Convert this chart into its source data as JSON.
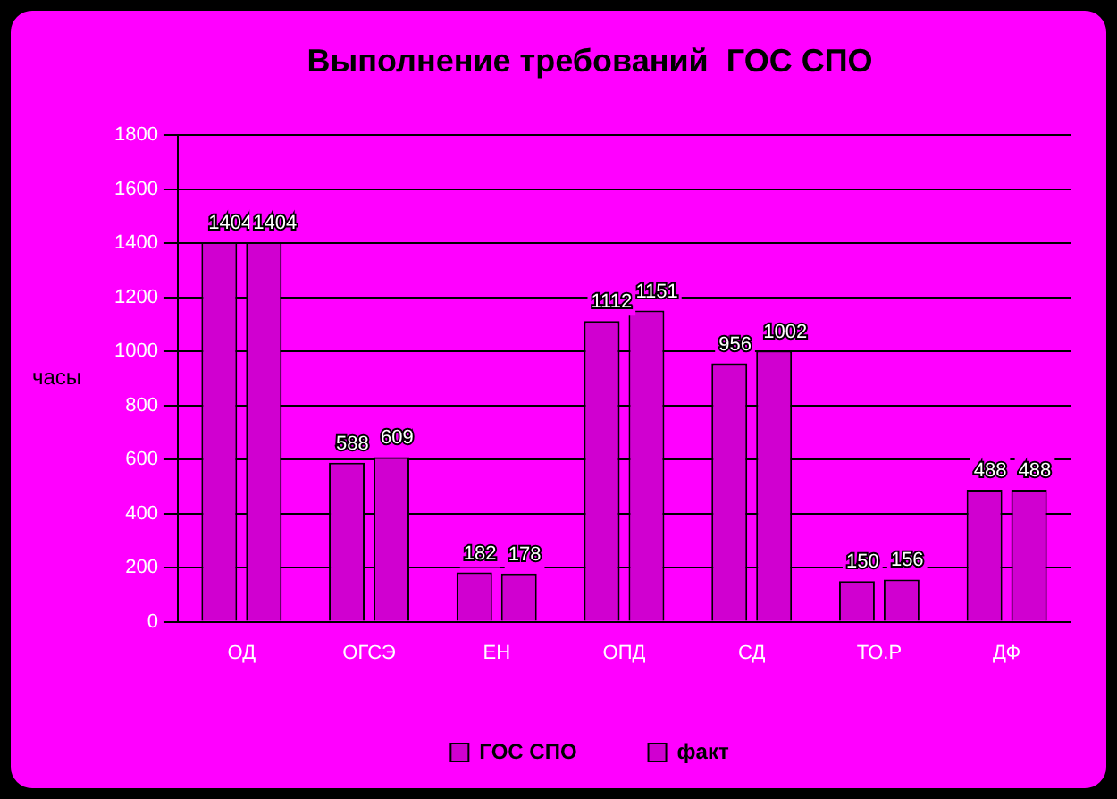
{
  "chart_data": {
    "type": "bar",
    "title": "Выполнение требований  ГОС СПО",
    "ylabel": "часы",
    "categories": [
      "ОД",
      "ОГСЭ",
      "ЕН",
      "ОПД",
      "СД",
      "ТО.Р",
      "ДФ"
    ],
    "series": [
      {
        "name": "ГОС СПО",
        "color": "#d000d0",
        "values": [
          1404,
          588,
          182,
          1112,
          956,
          150,
          488
        ]
      },
      {
        "name": "факт",
        "color": "#d000d0",
        "values": [
          1404,
          609,
          178,
          1151,
          1002,
          156,
          488
        ]
      }
    ],
    "ylim": [
      0,
      1800
    ],
    "yticks": [
      0,
      200,
      400,
      600,
      800,
      1000,
      1200,
      1400,
      1600,
      1800
    ],
    "grid": "y",
    "legend": "bottom",
    "data_labels": true
  }
}
